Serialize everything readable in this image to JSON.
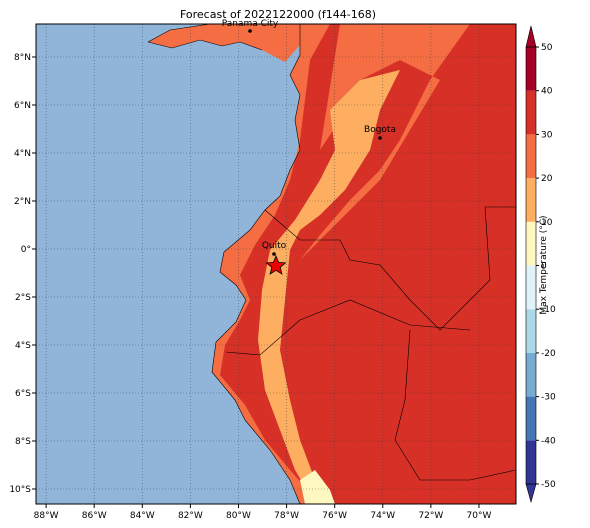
{
  "map": {
    "title": "Forecast of 2022122000 (f144-168)",
    "xlim": [
      -88.42,
      -68.46
    ],
    "ylim": [
      -10.625,
      9.375
    ],
    "xticks": [
      {
        "value": -88,
        "label": "88°W"
      },
      {
        "value": -86,
        "label": "86°W"
      },
      {
        "value": -84,
        "label": "84°W"
      },
      {
        "value": -82,
        "label": "82°W"
      },
      {
        "value": -80,
        "label": "80°W"
      },
      {
        "value": -78,
        "label": "78°W"
      },
      {
        "value": -76,
        "label": "76°W"
      },
      {
        "value": -74,
        "label": "74°W"
      },
      {
        "value": -72,
        "label": "72°W"
      },
      {
        "value": -70,
        "label": "70°W"
      }
    ],
    "yticks": [
      {
        "value": 8,
        "label": "8°N"
      },
      {
        "value": 6,
        "label": "6°N"
      },
      {
        "value": 4,
        "label": "4°N"
      },
      {
        "value": 2,
        "label": "2°N"
      },
      {
        "value": 0,
        "label": "0°"
      },
      {
        "value": -2,
        "label": "2°S"
      },
      {
        "value": -4,
        "label": "4°S"
      },
      {
        "value": -6,
        "label": "6°S"
      },
      {
        "value": -8,
        "label": "8°S"
      },
      {
        "value": -10,
        "label": "10°S"
      }
    ],
    "grid": true,
    "cities": [
      "Panama City",
      "Bogota",
      "Quito"
    ],
    "colorbar": {
      "label": "Max Temperature (°C)",
      "lim": [
        -50,
        50
      ],
      "ticks": [
        -50,
        -40,
        -30,
        -20,
        -10,
        0,
        10,
        20,
        30,
        40,
        50
      ],
      "colors": [
        "#313695",
        "#4575b4",
        "#74add1",
        "#abd9e9",
        "#e0f3f8",
        "#fff7c0",
        "#fdae61",
        "#f46d43",
        "#d73027",
        "#a50026"
      ]
    }
  }
}
